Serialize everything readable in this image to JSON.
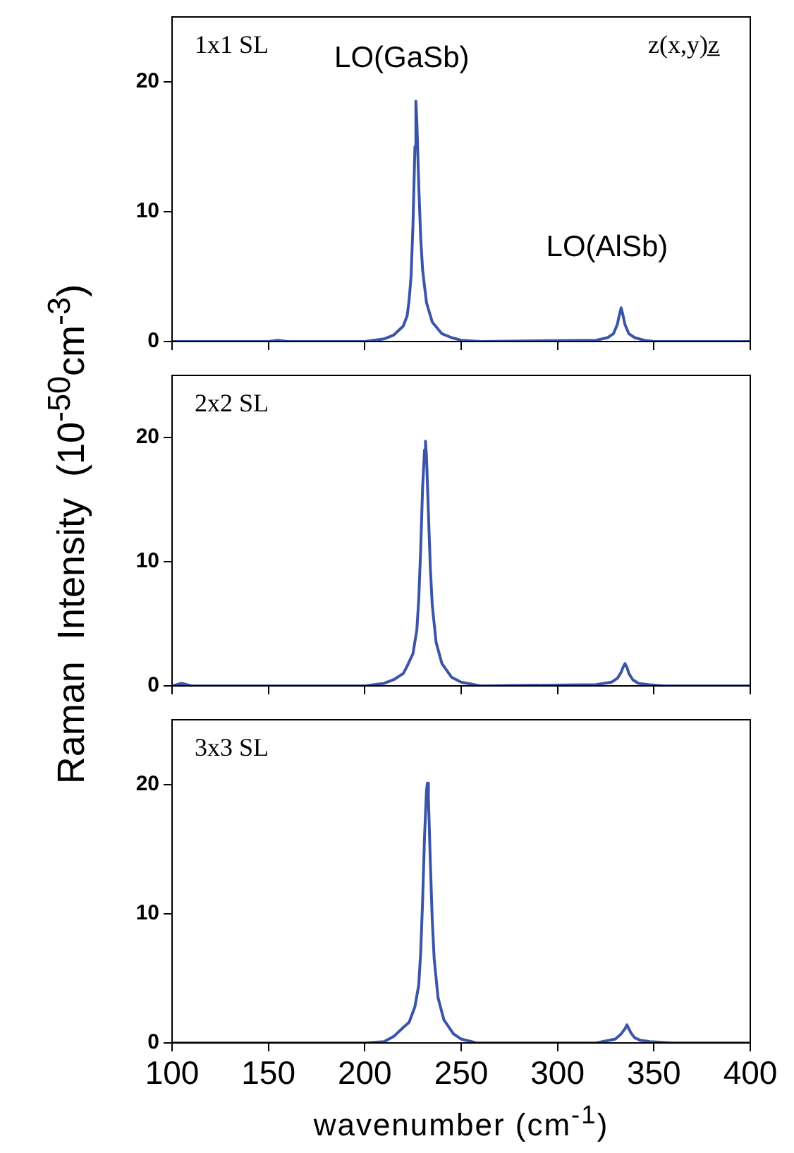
{
  "chart_data": [
    {
      "type": "line",
      "tick_labels": "y",
      "xlim": [
        100,
        400
      ],
      "xticks": [
        100,
        150,
        200,
        250,
        300,
        350,
        400
      ],
      "ylim": [
        0,
        25
      ],
      "yticks": [
        0,
        10,
        20
      ],
      "grid": false,
      "legend": false,
      "marker": "none",
      "line_style": "solid",
      "annotations": [
        "1x1 SL",
        "z(x,y)z̲",
        {
          "text": "LO(GaSb)",
          "x": 226.5,
          "y": 18.5
        },
        {
          "text": "LO(AlSb)",
          "x": 333,
          "y": 2.6
        }
      ],
      "x": [
        100,
        150,
        155,
        160,
        200,
        210,
        215,
        220,
        222,
        223,
        224,
        225,
        226,
        226.5,
        227,
        228,
        229,
        230,
        232,
        235,
        240,
        245,
        250,
        260,
        320,
        326,
        329,
        331,
        332,
        333,
        334,
        335,
        337,
        340,
        345,
        350,
        400
      ],
      "series": [
        {
          "color": "#3a55a8",
          "values": [
            0,
            0,
            0.1,
            0,
            0,
            0.2,
            0.5,
            1.2,
            2.0,
            3.2,
            5,
            9,
            15,
            18.5,
            17,
            12,
            8,
            5.5,
            3,
            1.5,
            0.6,
            0.3,
            0.1,
            0,
            0.1,
            0.3,
            0.6,
            1.3,
            2.0,
            2.6,
            2.0,
            1.3,
            0.6,
            0.3,
            0.1,
            0,
            0
          ]
        }
      ]
    },
    {
      "type": "line",
      "tick_labels": "y",
      "xlim": [
        100,
        400
      ],
      "xticks": [
        100,
        150,
        200,
        250,
        300,
        350,
        400
      ],
      "ylim": [
        0,
        25
      ],
      "yticks": [
        0,
        10,
        20
      ],
      "grid": false,
      "legend": false,
      "marker": "none",
      "line_style": "solid",
      "ylabel": "Raman  Intensity  (10$^{-50}$cm$^{-3}$)",
      "annotations": [
        "2x2 SL"
      ],
      "x": [
        100,
        105,
        110,
        200,
        210,
        215,
        220,
        222,
        225,
        227,
        228,
        229,
        230,
        231,
        231.5,
        232,
        233,
        234,
        235,
        237,
        240,
        245,
        250,
        260,
        320,
        328,
        331,
        333,
        334,
        335,
        336,
        337,
        339,
        342,
        347,
        355,
        400
      ],
      "series": [
        {
          "color": "#3a55a8",
          "values": [
            0,
            0.2,
            0,
            0,
            0.2,
            0.5,
            1.0,
            1.6,
            2.6,
            4.5,
            7,
            11,
            16,
            19,
            19.7,
            18.5,
            14,
            9.5,
            6.5,
            3.5,
            1.8,
            0.7,
            0.3,
            0,
            0.1,
            0.3,
            0.6,
            1.1,
            1.5,
            1.8,
            1.5,
            1.0,
            0.5,
            0.2,
            0.1,
            0,
            0
          ]
        }
      ]
    },
    {
      "type": "line",
      "xlim": [
        100,
        400
      ],
      "xticks": [
        100,
        150,
        200,
        250,
        300,
        350,
        400
      ],
      "ylim": [
        0,
        25
      ],
      "yticks": [
        0,
        10,
        20
      ],
      "grid": false,
      "legend": false,
      "marker": "none",
      "line_style": "solid",
      "xlabel": "wavenumber  (cm$^{-1}$)",
      "annotations": [
        "3x3 SL"
      ],
      "x": [
        100,
        200,
        210,
        215,
        220,
        223,
        226,
        228,
        229,
        230,
        231,
        232,
        232.5,
        233,
        234,
        235,
        236,
        238,
        241,
        246,
        250,
        258,
        320,
        330,
        333,
        335,
        336,
        337,
        338,
        340,
        343,
        348,
        360,
        400
      ],
      "series": [
        {
          "color": "#3a55a8",
          "values": [
            0,
            0,
            0.1,
            0.5,
            1.2,
            1.6,
            2.8,
            4.5,
            7,
            11,
            16,
            19.5,
            20.1,
            19,
            14,
            9.5,
            6.5,
            3.5,
            1.8,
            0.7,
            0.3,
            0,
            0,
            0.3,
            0.7,
            1.1,
            1.4,
            1.1,
            0.8,
            0.4,
            0.2,
            0.1,
            0,
            0
          ]
        }
      ]
    }
  ]
}
